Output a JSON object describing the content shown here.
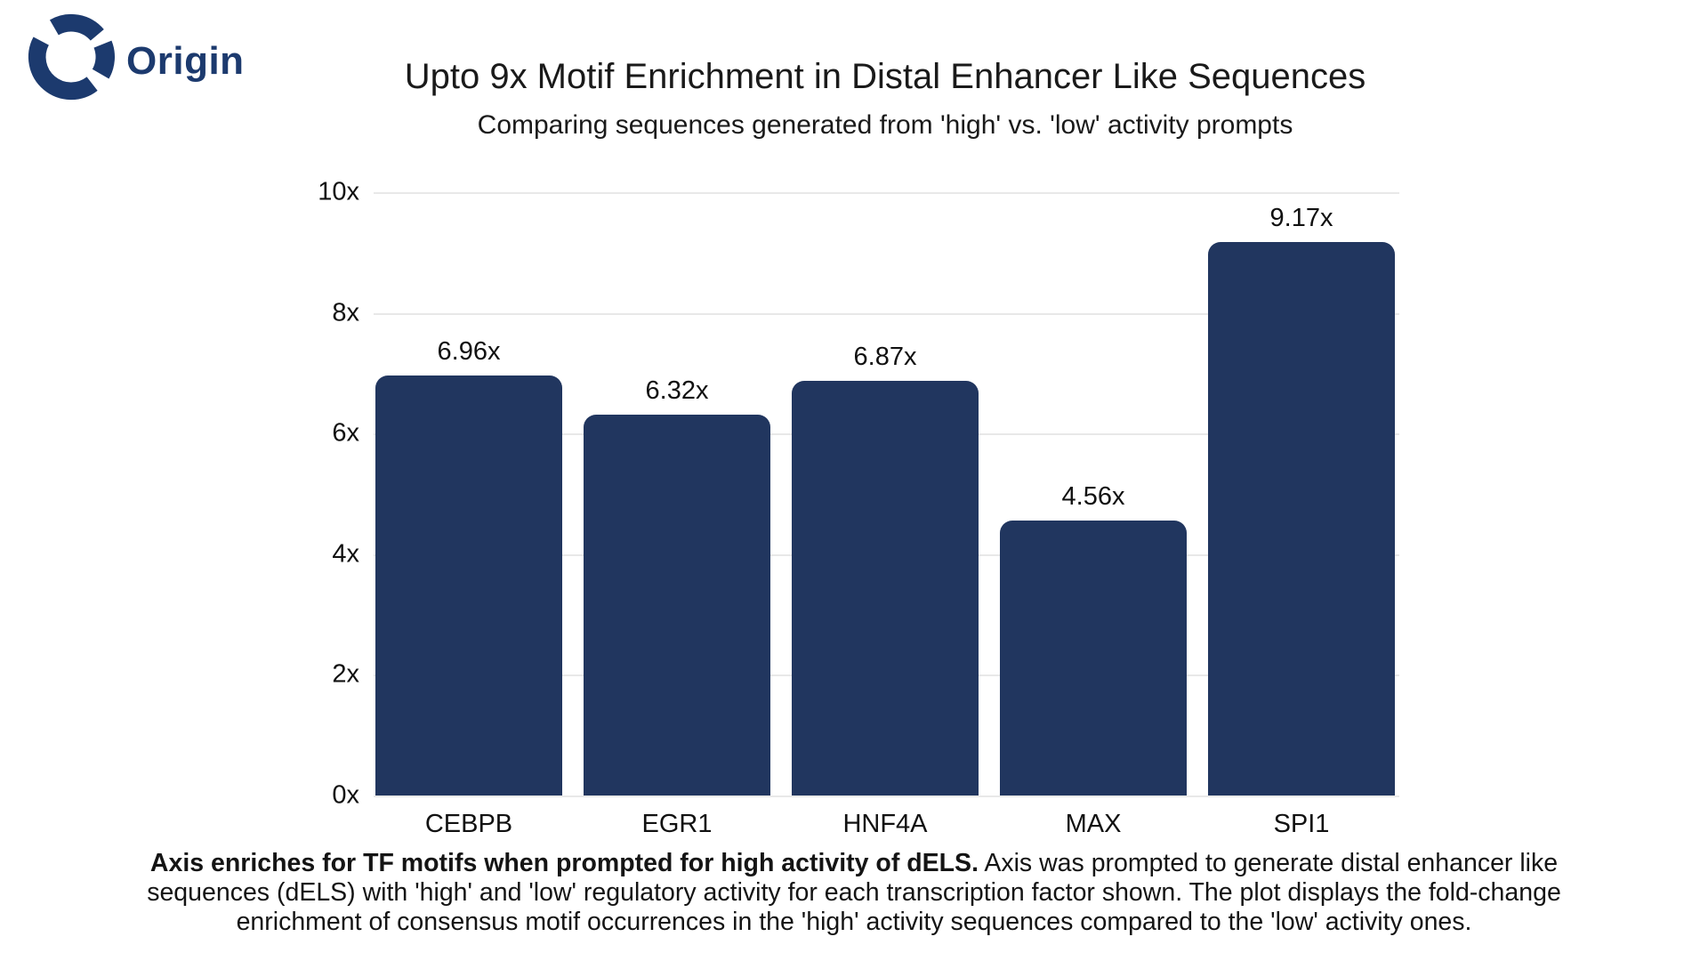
{
  "logo": {
    "text": "Origin",
    "color": "#1c3a6e"
  },
  "chart_data": {
    "type": "bar",
    "title": "Upto 9x Motif Enrichment in Distal Enhancer Like Sequences",
    "subtitle": "Comparing sequences generated from 'high' vs. 'low' activity prompts",
    "categories": [
      "CEBPB",
      "EGR1",
      "HNF4A",
      "MAX",
      "SPI1"
    ],
    "values": [
      6.96,
      6.32,
      6.87,
      4.56,
      9.17
    ],
    "value_labels": [
      "6.96x",
      "6.32x",
      "6.87x",
      "4.56x",
      "9.17x"
    ],
    "xlabel": "",
    "ylabel": "",
    "ylim": [
      0,
      10
    ],
    "ytick_labels_top_to_bottom": [
      "10x",
      "8x",
      "6x",
      "4x",
      "2x",
      "0x"
    ],
    "grid": "horizontal",
    "legend_position": "none",
    "bar_color": "#21365f",
    "grid_color": "#e8e8e8"
  },
  "caption": {
    "bold": "Axis enriches for TF motifs when prompted for high activity of dELS.",
    "text": " Axis was prompted to generate distal enhancer like sequences (dELS) with 'high' and 'low' regulatory activity for each transcription factor shown. The plot displays the fold-change enrichment of consensus motif occurrences in the 'high' activity sequences compared to the 'low' activity ones."
  }
}
